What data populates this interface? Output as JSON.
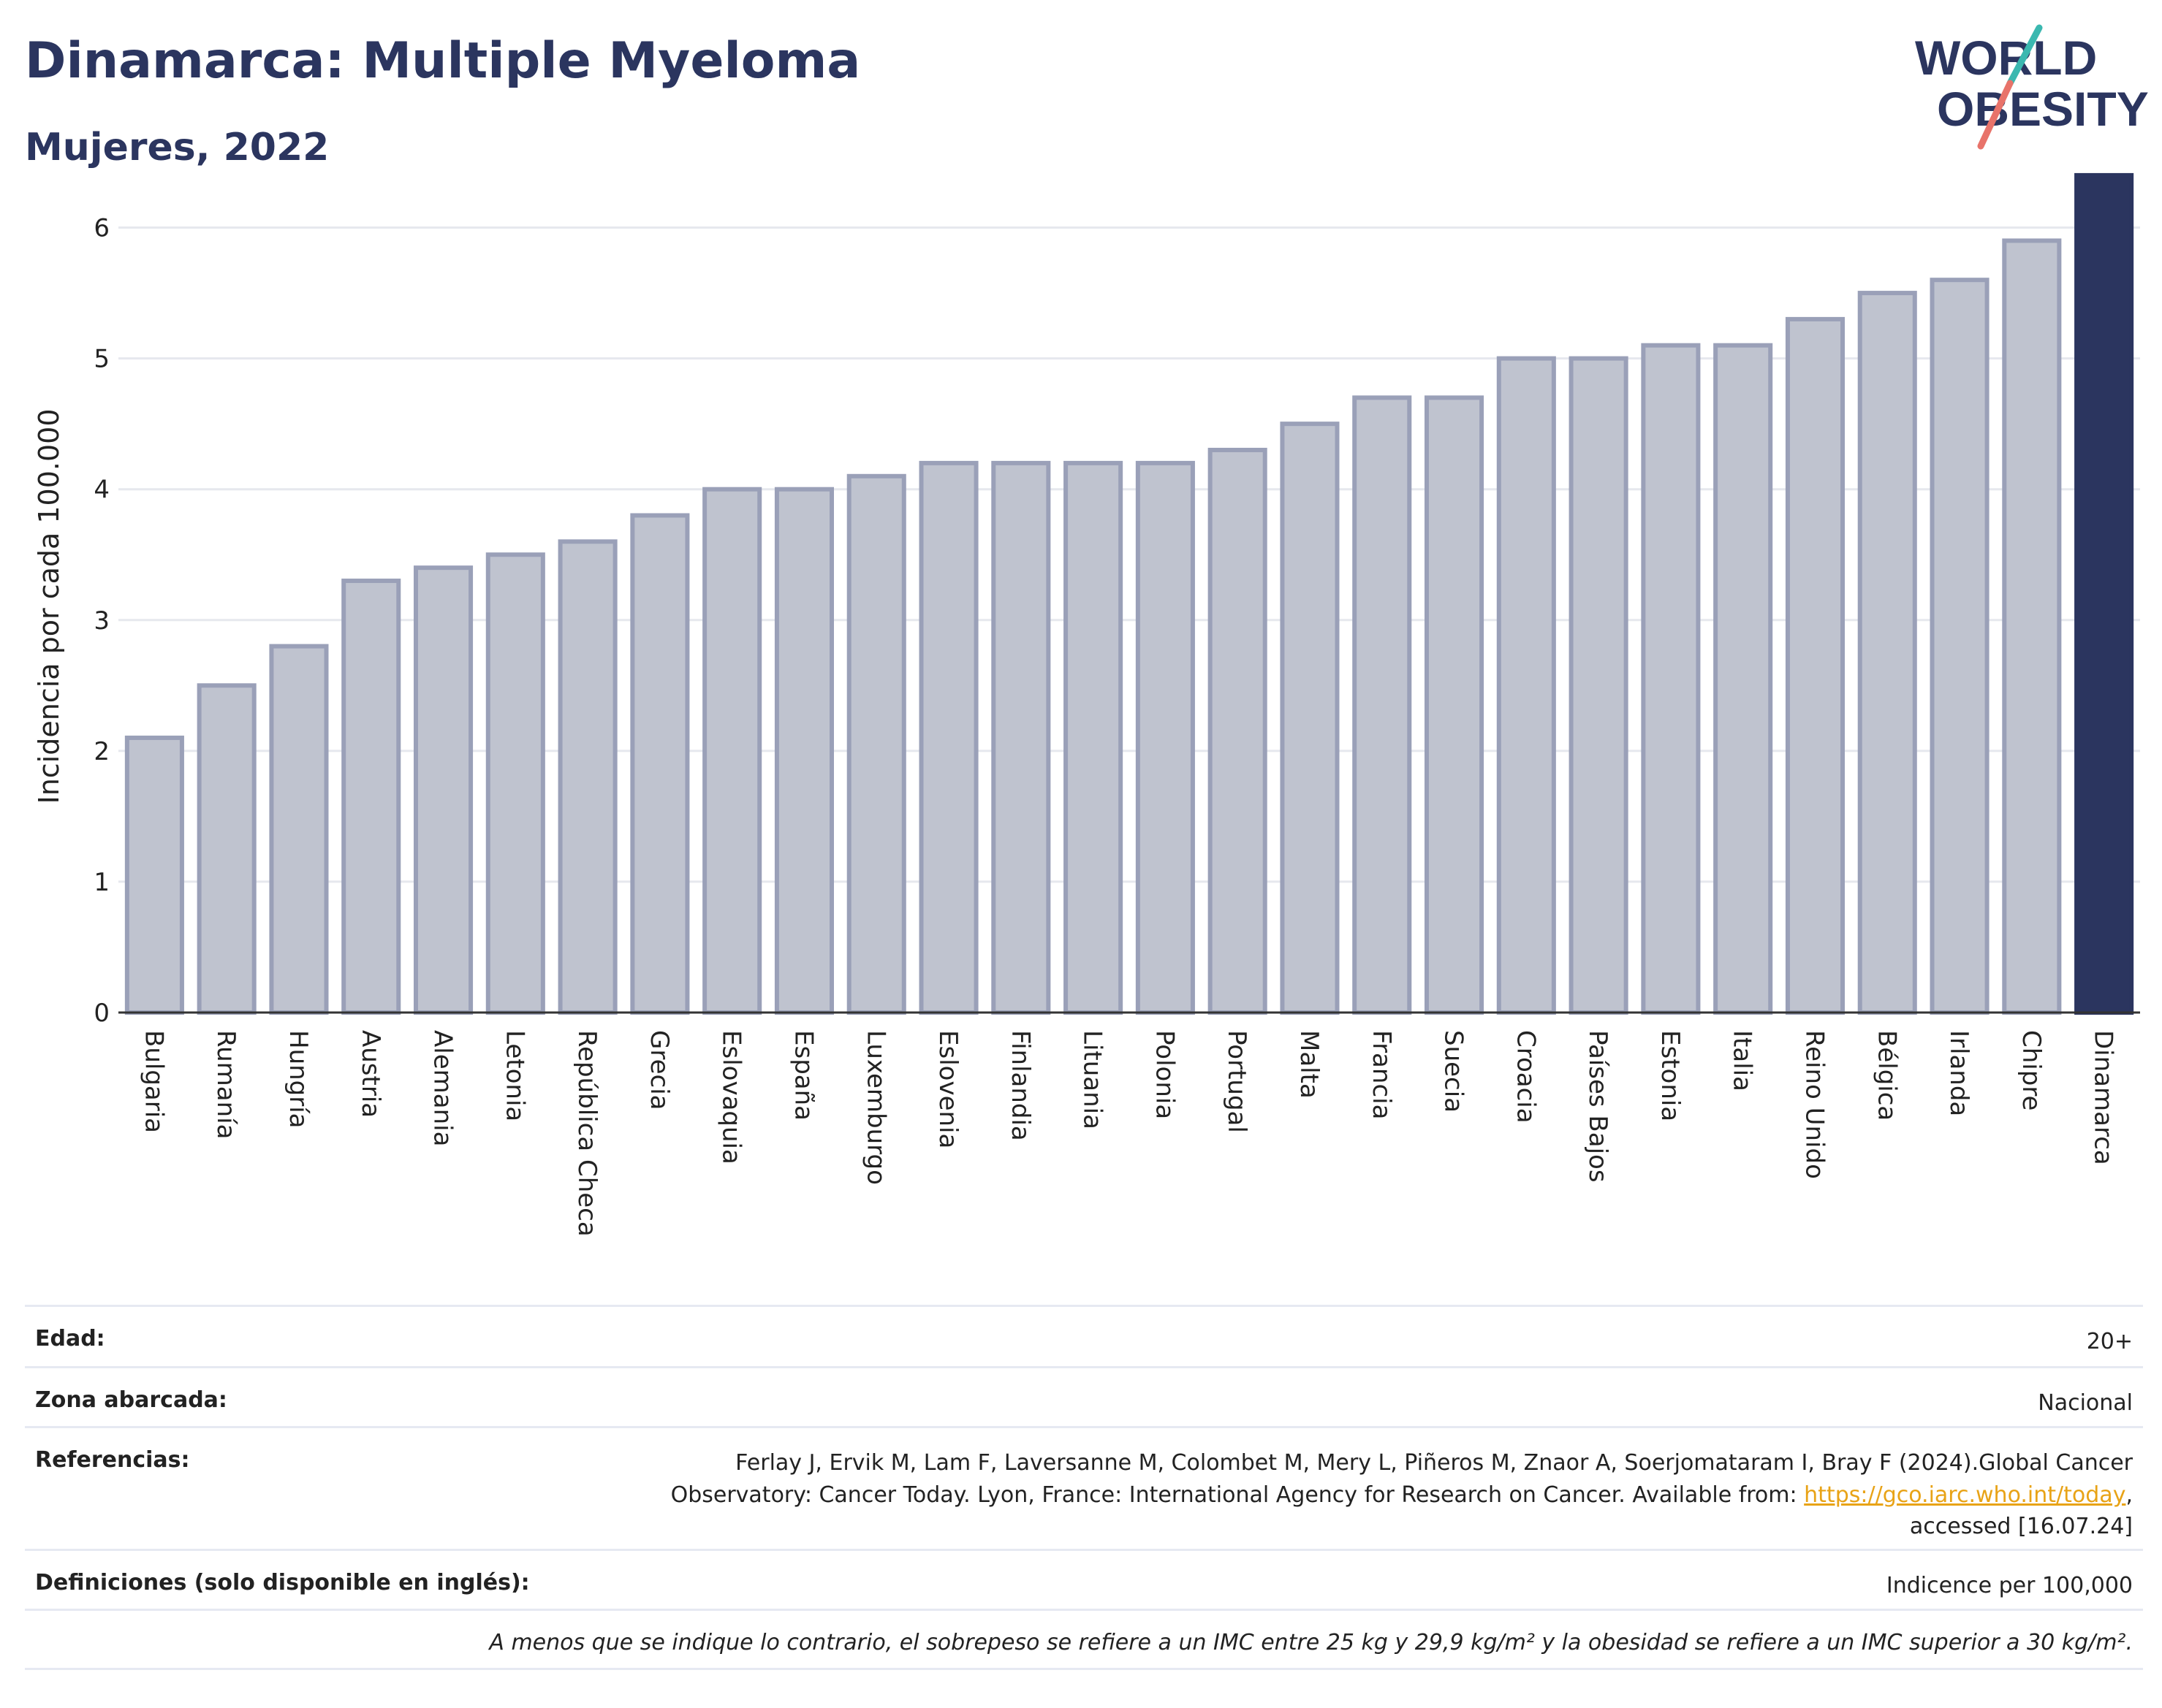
{
  "header": {
    "title": "Dinamarca: Multiple Myeloma",
    "subtitle": "Mujeres, 2022"
  },
  "logo": {
    "line1": "WORLD",
    "line2": "OBESITY"
  },
  "colors": {
    "highlight": "#2b355f",
    "bar_fill": "#bfc3cf",
    "bar_stroke": "#9aa0b8",
    "grid": "#e6e8ee",
    "logo_teal": "#3bb8b0",
    "logo_coral": "#e8736a"
  },
  "chart_data": {
    "type": "bar",
    "ylabel": "Incidencia por cada 100.000",
    "ylim": [
      0,
      6.5
    ],
    "yticks": [
      0,
      1,
      2,
      3,
      4,
      5,
      6
    ],
    "grid": true,
    "highlight": "Dinamarca",
    "categories": [
      "Bulgaria",
      "Rumanía",
      "Hungría",
      "Austria",
      "Alemania",
      "Letonia",
      "República Checa",
      "Grecia",
      "Eslovaquia",
      "España",
      "Luxemburgo",
      "Eslovenia",
      "Finlandia",
      "Lituania",
      "Polonia",
      "Portugal",
      "Malta",
      "Francia",
      "Suecia",
      "Croacia",
      "Países Bajos",
      "Estonia",
      "Italia",
      "Reino Unido",
      "Bélgica",
      "Irlanda",
      "Chipre",
      "Dinamarca"
    ],
    "values": [
      2.1,
      2.5,
      2.8,
      3.3,
      3.4,
      3.5,
      3.6,
      3.8,
      4.0,
      4.0,
      4.1,
      4.2,
      4.2,
      4.2,
      4.2,
      4.3,
      4.5,
      4.7,
      4.7,
      5.0,
      5.0,
      5.1,
      5.1,
      5.3,
      5.5,
      5.6,
      5.9,
      6.4
    ]
  },
  "meta": {
    "age_label": "Edad:",
    "age_value": "20+",
    "zone_label": "Zona abarcada:",
    "zone_value": "Nacional",
    "ref_label": "Referencias:",
    "ref_text_1": "Ferlay J, Ervik M, Lam F, Laversanne M, Colombet M, Mery L, Piñeros M, Znaor A, Soerjomataram I, Bray F (2024).Global Cancer",
    "ref_text_2": "Observatory: Cancer Today. Lyon, France: International Agency for Research on Cancer. Available from: ",
    "ref_link": "https://gco.iarc.who.int/today",
    "ref_text_3": ",",
    "ref_text_4": "accessed [16.07.24]",
    "def_label": "Definiciones (solo disponible en inglés):",
    "def_value": "Indicence per 100,000",
    "note": "A menos que se indique lo contrario, el sobrepeso se refiere a un IMC entre 25 kg y 29,9 kg/m² y la obesidad se refiere a un IMC superior a 30 kg/m²."
  }
}
